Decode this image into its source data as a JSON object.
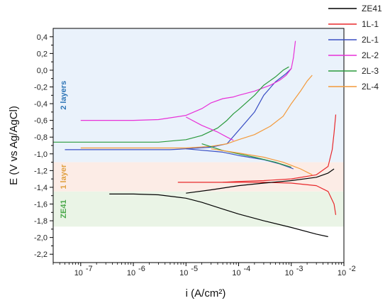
{
  "chart_data": {
    "type": "line",
    "title": "",
    "xlabel": "i (A/cm²)",
    "ylabel": "E (V vs Ag/AgCl)",
    "x_scale": "log",
    "xlim": [
      3e-08,
      0.01
    ],
    "ylim": [
      -2.3,
      0.5
    ],
    "x_ticks": [
      1e-07,
      1e-06,
      1e-05,
      0.0001,
      0.001,
      0.01
    ],
    "x_tick_labels": [
      "10",
      "10",
      "10",
      "10",
      "10",
      "10"
    ],
    "x_tick_exponents": [
      "-7",
      "-6",
      "-5",
      "-4",
      "-3",
      "-2"
    ],
    "y_ticks": [
      0.4,
      0.2,
      0.0,
      -0.2,
      -0.4,
      -0.6,
      -0.8,
      -1.0,
      -1.2,
      -1.4,
      -1.6,
      -1.8,
      -2.0,
      -2.2
    ],
    "y_tick_labels": [
      "0,4",
      "0,2",
      "0,0",
      "-0,2",
      "-0,4",
      "-0,6",
      "-0,8",
      "-1,0",
      "-1,2",
      "-1,4",
      "-1,6",
      "-1,8",
      "-2,0",
      "-2,2"
    ],
    "grid": false,
    "legend_position": "top-right-outside",
    "bands": [
      {
        "label": "2 layers",
        "y_range": [
          -1.1,
          0.5
        ],
        "fill": "#eaf2fb",
        "text_color": "#2e75b6"
      },
      {
        "label": "1 layer",
        "y_range": [
          -1.45,
          -1.1
        ],
        "fill": "#fcece6",
        "text_color": "#e0a040"
      },
      {
        "label": "ZE41",
        "y_range": [
          -1.87,
          -1.45
        ],
        "fill": "#eaf4e6",
        "text_color": "#4aa84a"
      }
    ],
    "series": [
      {
        "name": "ZE41",
        "color": "#000000",
        "x": [
          3.5e-07,
          1e-06,
          3e-06,
          1e-05,
          2e-05,
          5e-05,
          0.0001,
          0.0003,
          0.001,
          0.003,
          0.005
        ],
        "y": [
          -1.48,
          -1.48,
          -1.49,
          -1.53,
          -1.58,
          -1.66,
          -1.72,
          -1.8,
          -1.88,
          -1.96,
          -1.99
        ]
      },
      {
        "name": "1L-1",
        "color": "#e8282b",
        "x": [
          7e-06,
          2e-05,
          5e-05,
          0.0001,
          0.0003,
          0.001,
          0.003,
          0.005,
          0.0065,
          0.007
        ],
        "y": [
          -1.34,
          -1.34,
          -1.34,
          -1.34,
          -1.34,
          -1.35,
          -1.38,
          -1.45,
          -1.6,
          -1.73
        ]
      },
      {
        "name": "2L-1",
        "color": "#3a4fc4",
        "x": [
          5e-08,
          1e-07,
          1e-06,
          5e-06,
          1e-05,
          3e-05,
          6e-05,
          0.0001,
          0.0002,
          0.0003,
          0.0005,
          0.0008,
          0.001
        ],
        "y": [
          -0.95,
          -0.95,
          -0.95,
          -0.95,
          -0.94,
          -0.92,
          -0.88,
          -0.72,
          -0.5,
          -0.3,
          -0.14,
          -0.04,
          0.02
        ]
      },
      {
        "name": "2L-2",
        "color": "#e830d8",
        "x": [
          1e-07,
          3e-07,
          1e-06,
          3e-06,
          1e-05,
          2e-05,
          3e-05,
          5e-05,
          8e-05,
          0.0001,
          0.0002,
          0.0004,
          0.0006,
          0.0008,
          0.001,
          0.0011,
          0.0012
        ],
        "y": [
          -0.6,
          -0.6,
          -0.6,
          -0.59,
          -0.54,
          -0.46,
          -0.39,
          -0.34,
          -0.32,
          -0.3,
          -0.25,
          -0.18,
          -0.12,
          -0.06,
          0.02,
          0.15,
          0.35
        ]
      },
      {
        "name": "2L-3",
        "color": "#2a9a3c",
        "x": [
          3e-08,
          1e-07,
          1e-06,
          3e-06,
          1e-05,
          2e-05,
          4e-05,
          6e-05,
          8e-05,
          0.0001,
          0.0002,
          0.0003,
          0.0005,
          0.0007,
          0.0009
        ],
        "y": [
          -0.86,
          -0.86,
          -0.86,
          -0.86,
          -0.83,
          -0.78,
          -0.69,
          -0.6,
          -0.52,
          -0.47,
          -0.3,
          -0.18,
          -0.08,
          0.0,
          0.04
        ]
      },
      {
        "name": "2L-4",
        "color": "#f39a3b",
        "x": [
          1e-07,
          1e-06,
          5e-06,
          1e-05,
          3e-05,
          6e-05,
          0.0001,
          0.0002,
          0.0004,
          0.0007,
          0.001,
          0.0015,
          0.002,
          0.0025
        ],
        "y": [
          -0.93,
          -0.93,
          -0.93,
          -0.93,
          -0.91,
          -0.88,
          -0.83,
          -0.77,
          -0.67,
          -0.55,
          -0.4,
          -0.25,
          -0.13,
          -0.06
        ]
      }
    ],
    "cathodic_branches": [
      {
        "series": "2L-1",
        "x": [
          1e-05,
          5e-05,
          0.0001,
          0.0003,
          0.0006,
          0.0009,
          0.0011
        ],
        "y": [
          -0.94,
          -0.98,
          -1.02,
          -1.07,
          -1.12,
          -1.16,
          -1.18
        ]
      },
      {
        "series": "2L-2",
        "x": [
          1e-05,
          2e-05,
          4e-05,
          6e-05,
          8e-05
        ],
        "y": [
          -0.56,
          -0.66,
          -0.74,
          -0.8,
          -0.84
        ]
      },
      {
        "series": "2L-3",
        "x": [
          2e-05,
          5e-05,
          0.0001,
          0.0002,
          0.0005,
          0.001
        ],
        "y": [
          -0.88,
          -0.96,
          -1.0,
          -1.04,
          -1.1,
          -1.16
        ]
      },
      {
        "series": "2L-4",
        "x": [
          3e-05,
          0.0001,
          0.0003,
          0.0007,
          0.0015,
          0.0025
        ],
        "y": [
          -0.94,
          -0.99,
          -1.04,
          -1.1,
          -1.18,
          -1.25
        ]
      },
      {
        "series": "ZE41",
        "x": [
          1e-05,
          3e-05,
          0.0001,
          0.0003,
          0.001,
          0.003,
          0.005,
          0.0065
        ],
        "y": [
          -1.47,
          -1.43,
          -1.38,
          -1.35,
          -1.32,
          -1.28,
          -1.23,
          -1.18
        ]
      },
      {
        "series": "1L-1",
        "x": [
          5e-05,
          0.0001,
          0.0003,
          0.001,
          0.003,
          0.005,
          0.006,
          0.0065,
          0.007
        ],
        "y": [
          -1.34,
          -1.33,
          -1.32,
          -1.3,
          -1.25,
          -1.15,
          -0.95,
          -0.75,
          -0.53
        ]
      }
    ]
  }
}
